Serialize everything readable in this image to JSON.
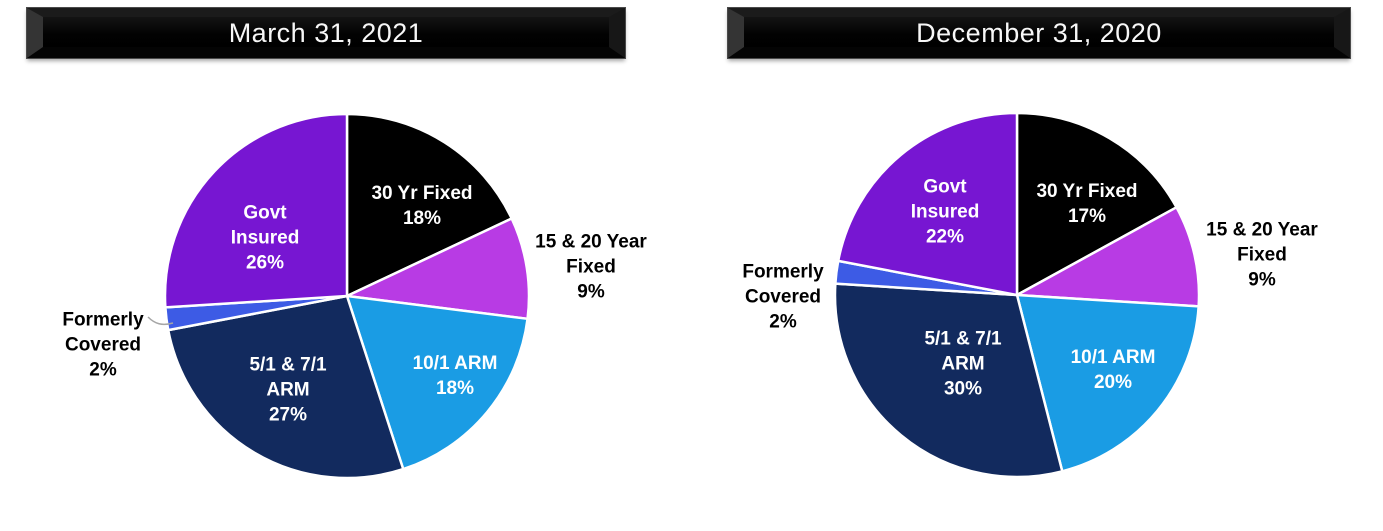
{
  "theme": {
    "background": "#FFFFFF",
    "banner_face": "#000000",
    "banner_text_color": "#FFFFFF",
    "slice_border_color": "#FFFFFF",
    "leader_line_color": "#A6A6A6"
  },
  "charts": [
    {
      "title": "March 31, 2021",
      "chart_data": {
        "type": "pie",
        "title": "March 31, 2021",
        "start_angle": "12 o'clock",
        "direction": "clockwise",
        "unit": "%",
        "categories": [
          "30 Yr Fixed",
          "15 & 20 Year Fixed",
          "10/1 ARM",
          "5/1 & 7/1 ARM",
          "Formerly Covered",
          "Govt Insured"
        ],
        "values": [
          18,
          9,
          18,
          27,
          2,
          26
        ],
        "slices": [
          {
            "id": "30-yr-fixed",
            "label": "30 Yr Fixed",
            "pct": 18,
            "display": "18%",
            "label_lines": [
              "30 Yr Fixed",
              "18%"
            ],
            "color": "#000000",
            "label_color": "#FFFFFF",
            "placement": "inside",
            "leader_line": false
          },
          {
            "id": "15-20-year-fixed",
            "label": "15 & 20 Year Fixed",
            "pct": 9,
            "display": "9%",
            "label_lines": [
              "15 & 20 Year",
              "Fixed",
              "9%"
            ],
            "color": "#B83BE4",
            "label_color": "#000000",
            "placement": "outside",
            "leader_line": false
          },
          {
            "id": "10-1-arm",
            "label": "10/1 ARM",
            "pct": 18,
            "display": "18%",
            "label_lines": [
              "10/1 ARM",
              "18%"
            ],
            "color": "#1A9CE4",
            "label_color": "#FFFFFF",
            "placement": "inside",
            "leader_line": false
          },
          {
            "id": "5-1-7-1-arm",
            "label": "5/1 & 7/1 ARM",
            "pct": 27,
            "display": "27%",
            "label_lines": [
              "5/1 & 7/1",
              "ARM",
              "27%"
            ],
            "color": "#122A5E",
            "label_color": "#FFFFFF",
            "placement": "inside",
            "leader_line": false
          },
          {
            "id": "formerly-covered",
            "label": "Formerly Covered",
            "pct": 2,
            "display": "2%",
            "label_lines": [
              "Formerly",
              "Covered",
              "2%"
            ],
            "color": "#3D5BE5",
            "label_color": "#000000",
            "placement": "outside",
            "leader_line": true
          },
          {
            "id": "govt-insured",
            "label": "Govt Insured",
            "pct": 26,
            "display": "26%",
            "label_lines": [
              "Govt",
              "Insured",
              "26%"
            ],
            "color": "#7716D2",
            "label_color": "#FFFFFF",
            "placement": "inside",
            "leader_line": false
          }
        ]
      }
    },
    {
      "title": "December 31, 2020",
      "chart_data": {
        "type": "pie",
        "title": "December 31, 2020",
        "start_angle": "12 o'clock",
        "direction": "clockwise",
        "unit": "%",
        "categories": [
          "30 Yr Fixed",
          "15 & 20 Year Fixed",
          "10/1 ARM",
          "5/1 & 7/1 ARM",
          "Formerly Covered",
          "Govt Insured"
        ],
        "values": [
          17,
          9,
          20,
          30,
          2,
          22
        ],
        "slices": [
          {
            "id": "30-yr-fixed",
            "label": "30 Yr Fixed",
            "pct": 17,
            "display": "17%",
            "label_lines": [
              "30 Yr Fixed",
              "17%"
            ],
            "color": "#000000",
            "label_color": "#FFFFFF",
            "placement": "inside",
            "leader_line": false
          },
          {
            "id": "15-20-year-fixed",
            "label": "15 & 20 Year Fixed",
            "pct": 9,
            "display": "9%",
            "label_lines": [
              "15 & 20 Year",
              "Fixed",
              "9%"
            ],
            "color": "#B83BE4",
            "label_color": "#000000",
            "placement": "outside",
            "leader_line": false
          },
          {
            "id": "10-1-arm",
            "label": "10/1 ARM",
            "pct": 20,
            "display": "20%",
            "label_lines": [
              "10/1 ARM",
              "20%"
            ],
            "color": "#1A9CE4",
            "label_color": "#FFFFFF",
            "placement": "inside",
            "leader_line": false
          },
          {
            "id": "5-1-7-1-arm",
            "label": "5/1 & 7/1 ARM",
            "pct": 30,
            "display": "30%",
            "label_lines": [
              "5/1 & 7/1",
              "ARM",
              "30%"
            ],
            "color": "#122A5E",
            "label_color": "#FFFFFF",
            "placement": "inside",
            "leader_line": false
          },
          {
            "id": "formerly-covered",
            "label": "Formerly Covered",
            "pct": 2,
            "display": "2%",
            "label_lines": [
              "Formerly",
              "Covered",
              "2%"
            ],
            "color": "#3D5BE5",
            "label_color": "#000000",
            "placement": "outside",
            "leader_line": false
          },
          {
            "id": "govt-insured",
            "label": "Govt Insured",
            "pct": 22,
            "display": "22%",
            "label_lines": [
              "Govt",
              "Insured",
              "22%"
            ],
            "color": "#7716D2",
            "label_color": "#FFFFFF",
            "placement": "inside",
            "leader_line": false
          }
        ]
      }
    }
  ]
}
